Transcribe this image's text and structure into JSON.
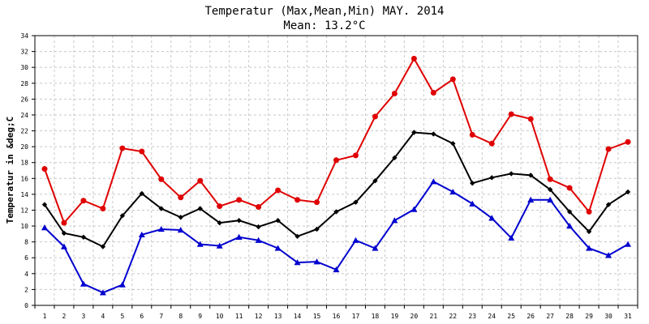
{
  "chart_data": {
    "type": "line",
    "title": "Temperatur (Max,Mean,Min) MAY. 2014",
    "subtitle": "Mean: 13.2°C",
    "xlabel": "",
    "ylabel": "Temperatur in &deg;C",
    "x": [
      1,
      2,
      3,
      4,
      5,
      6,
      7,
      8,
      9,
      10,
      11,
      12,
      13,
      14,
      15,
      16,
      17,
      18,
      19,
      20,
      21,
      22,
      23,
      24,
      25,
      26,
      27,
      28,
      29,
      30,
      31
    ],
    "ylim": [
      0,
      34
    ],
    "yticks": [
      0,
      2,
      4,
      6,
      8,
      10,
      12,
      14,
      16,
      18,
      20,
      22,
      24,
      26,
      28,
      30,
      32,
      34
    ],
    "grid": true,
    "series": [
      {
        "key": "max",
        "color": "#e00000",
        "marker": "circle",
        "values": [
          17.2,
          10.4,
          13.2,
          12.2,
          19.8,
          19.4,
          15.9,
          13.6,
          15.7,
          12.5,
          13.3,
          12.4,
          14.5,
          13.3,
          13.0,
          18.3,
          18.9,
          23.8,
          26.7,
          31.1,
          26.8,
          28.5,
          21.5,
          20.4,
          24.1,
          23.5,
          15.9,
          14.8,
          11.8,
          19.7,
          20.6
        ]
      },
      {
        "key": "mean",
        "color": "#000000",
        "marker": "diamond",
        "values": [
          12.7,
          9.1,
          8.6,
          7.4,
          11.3,
          14.1,
          12.2,
          11.1,
          12.2,
          10.4,
          10.7,
          9.9,
          10.7,
          8.7,
          9.6,
          11.8,
          13.0,
          15.7,
          18.6,
          21.8,
          21.6,
          20.4,
          15.4,
          16.1,
          16.6,
          16.4,
          14.6,
          11.8,
          9.3,
          12.7,
          14.3
        ]
      },
      {
        "key": "min",
        "color": "#0000d0",
        "marker": "triangle",
        "values": [
          9.8,
          7.4,
          2.7,
          1.6,
          2.6,
          8.9,
          9.6,
          9.5,
          7.7,
          7.5,
          8.6,
          8.2,
          7.2,
          5.4,
          5.5,
          4.5,
          8.2,
          7.2,
          10.7,
          12.1,
          15.6,
          14.3,
          12.8,
          11.0,
          8.5,
          13.3,
          13.3,
          10.0,
          7.2,
          6.3,
          7.7
        ]
      }
    ]
  }
}
